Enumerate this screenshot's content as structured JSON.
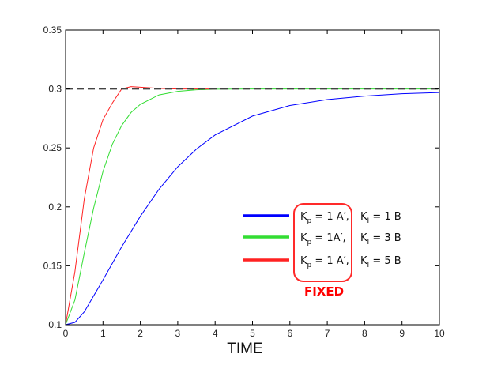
{
  "chart_data": {
    "type": "line",
    "title": "",
    "xlabel": "TIME",
    "ylabel": "",
    "xlim": [
      0,
      10
    ],
    "ylim": [
      0.1,
      0.35
    ],
    "xticks": [
      0,
      1,
      2,
      3,
      4,
      5,
      6,
      7,
      8,
      9,
      10
    ],
    "yticks": [
      0.1,
      0.15,
      0.2,
      0.25,
      0.3,
      0.35
    ],
    "ytick_labels": [
      "0.1",
      "0.15",
      "0.2",
      "0.25",
      "0.3",
      "0.35"
    ],
    "grid": false,
    "legend_position": "center-right",
    "reference_line": {
      "y": 0.3,
      "style": "dashed",
      "color": "#000000"
    },
    "series": [
      {
        "name": "Kp = 1 A′, KI = 1 B",
        "kp_label": "K",
        "kp_sub": "p",
        "kp_value": "= 1 A′,",
        "ki_label": "K",
        "ki_sub": "I",
        "ki_value": "= 1 B",
        "color": "#0000ff",
        "x": [
          0,
          0.25,
          0.5,
          1,
          1.5,
          2,
          2.5,
          3,
          3.5,
          4,
          5,
          6,
          7,
          8,
          9,
          10
        ],
        "y": [
          0.1,
          0.102,
          0.111,
          0.138,
          0.166,
          0.192,
          0.215,
          0.234,
          0.249,
          0.261,
          0.277,
          0.286,
          0.291,
          0.294,
          0.296,
          0.297
        ]
      },
      {
        "name": "Kp = 1A′, KI = 3 B",
        "kp_label": "K",
        "kp_sub": "p",
        "kp_value": "= 1A′,",
        "ki_label": "K",
        "ki_sub": "I",
        "ki_value": "= 3 B",
        "color": "#33dd33",
        "x": [
          0,
          0.25,
          0.5,
          0.75,
          1,
          1.25,
          1.5,
          1.75,
          2,
          2.5,
          3,
          3.5,
          4,
          5,
          6,
          7,
          8,
          9,
          10
        ],
        "y": [
          0.1,
          0.121,
          0.161,
          0.199,
          0.23,
          0.253,
          0.269,
          0.28,
          0.287,
          0.295,
          0.298,
          0.2993,
          0.2998,
          0.3,
          0.3,
          0.3,
          0.3,
          0.3,
          0.3
        ]
      },
      {
        "name": "Kp = 1 A′, KI = 5 B",
        "kp_label": "K",
        "kp_sub": "p",
        "kp_value": "= 1 A′,",
        "ki_label": "K",
        "ki_sub": "I",
        "ki_value": "= 5 B",
        "color": "#ff2222",
        "x": [
          0,
          0.25,
          0.5,
          0.75,
          1,
          1.25,
          1.5,
          1.75,
          2,
          2.5,
          3,
          3.5,
          4
        ],
        "y": [
          0.1,
          0.145,
          0.207,
          0.25,
          0.274,
          0.288,
          0.3,
          0.302,
          0.3015,
          0.3005,
          0.3,
          0.3,
          0.3
        ]
      }
    ],
    "annotation": {
      "text": "FIXED",
      "color": "#ff0000"
    }
  }
}
